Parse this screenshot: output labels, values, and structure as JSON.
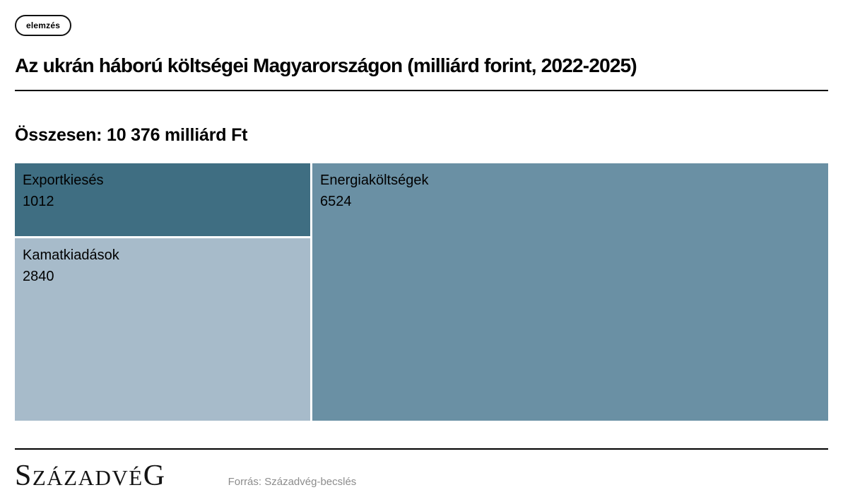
{
  "badge": {
    "label": "elemzés"
  },
  "header": {
    "title": "Az ukrán háború költségei Magyarországon (milliárd forint, 2022-2025)"
  },
  "summary": {
    "total_label": "Összesen: 10 376 milliárd Ft"
  },
  "chart_data": {
    "type": "treemap",
    "title": "Az ukrán háború költségei Magyarországon (milliárd forint, 2022-2025)",
    "total": 10376,
    "unit": "milliárd Ft",
    "items": [
      {
        "name": "Exportkiesés",
        "value": 1012,
        "color": "#3f6e82"
      },
      {
        "name": "Kamatkiadások",
        "value": 2840,
        "color": "#a7bbca"
      },
      {
        "name": "Energiaköltségek",
        "value": 6524,
        "color": "#6a90a4"
      }
    ],
    "layout_hint": "left column stacks items 0 and 1, item 2 fills right side",
    "label_color": "#000000",
    "gap_color": "#ffffff"
  },
  "footer": {
    "logo": {
      "first": "S",
      "middle": "ZÁZADVÉ",
      "last": "G"
    },
    "source": "Forrás: Századvég-becslés"
  }
}
